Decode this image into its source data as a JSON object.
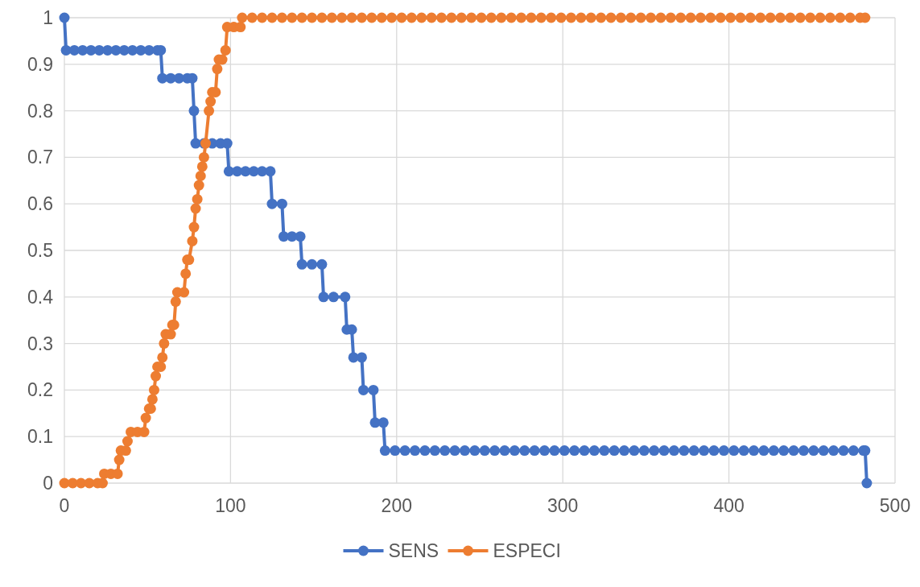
{
  "chart_data": {
    "type": "line",
    "xlim": [
      0,
      500
    ],
    "xticks": [
      0,
      100,
      200,
      300,
      400,
      500
    ],
    "ylim": [
      0,
      1
    ],
    "yticks": [
      0,
      0.1,
      0.2,
      0.3,
      0.4,
      0.5,
      0.6,
      0.7,
      0.8,
      0.9,
      1
    ],
    "grid": true,
    "legend": "bottom",
    "marker": "circle",
    "line_style": "solid",
    "series": [
      {
        "name": "SENS",
        "color": "#4472c4",
        "x": [
          0,
          1,
          6,
          11,
          16,
          21,
          26,
          31,
          36,
          41,
          46,
          51,
          56,
          58,
          59,
          64,
          69,
          74,
          77,
          78,
          79,
          84,
          89,
          94,
          98,
          99,
          104,
          109,
          114,
          119,
          124,
          125,
          131,
          132,
          137,
          142,
          143,
          149,
          155,
          156,
          162,
          169,
          170,
          173,
          174,
          179,
          180,
          186,
          187,
          192,
          193,
          199,
          205,
          211,
          217,
          223,
          229,
          235,
          241,
          247,
          253,
          259,
          265,
          271,
          277,
          283,
          289,
          295,
          301,
          307,
          313,
          319,
          325,
          331,
          337,
          343,
          349,
          355,
          361,
          367,
          373,
          379,
          385,
          391,
          397,
          403,
          409,
          415,
          421,
          427,
          433,
          439,
          445,
          451,
          457,
          463,
          469,
          475,
          481,
          482,
          483
        ],
        "values": [
          1,
          0.93,
          0.93,
          0.93,
          0.93,
          0.93,
          0.93,
          0.93,
          0.93,
          0.93,
          0.93,
          0.93,
          0.93,
          0.93,
          0.87,
          0.87,
          0.87,
          0.87,
          0.87,
          0.8,
          0.73,
          0.73,
          0.73,
          0.73,
          0.73,
          0.67,
          0.67,
          0.67,
          0.67,
          0.67,
          0.67,
          0.6,
          0.6,
          0.53,
          0.53,
          0.53,
          0.47,
          0.47,
          0.47,
          0.4,
          0.4,
          0.4,
          0.33,
          0.33,
          0.27,
          0.27,
          0.2,
          0.2,
          0.13,
          0.13,
          0.07,
          0.07,
          0.07,
          0.07,
          0.07,
          0.07,
          0.07,
          0.07,
          0.07,
          0.07,
          0.07,
          0.07,
          0.07,
          0.07,
          0.07,
          0.07,
          0.07,
          0.07,
          0.07,
          0.07,
          0.07,
          0.07,
          0.07,
          0.07,
          0.07,
          0.07,
          0.07,
          0.07,
          0.07,
          0.07,
          0.07,
          0.07,
          0.07,
          0.07,
          0.07,
          0.07,
          0.07,
          0.07,
          0.07,
          0.07,
          0.07,
          0.07,
          0.07,
          0.07,
          0.07,
          0.07,
          0.07,
          0.07,
          0.07,
          0.07,
          0
        ]
      },
      {
        "name": "ESPECI",
        "color": "#ed7d31",
        "x": [
          0,
          5,
          10,
          15,
          20,
          23,
          24,
          28,
          32,
          33,
          34,
          37,
          38,
          40,
          44,
          48,
          49,
          51,
          52,
          53,
          54,
          55,
          56,
          58,
          59,
          60,
          61,
          64,
          65,
          66,
          67,
          68,
          72,
          73,
          74,
          75,
          77,
          78,
          79,
          80,
          81,
          82,
          83,
          84,
          85,
          87,
          88,
          89,
          91,
          92,
          93,
          95,
          97,
          98,
          102,
          106,
          107,
          113,
          119,
          125,
          131,
          137,
          143,
          149,
          155,
          161,
          167,
          173,
          179,
          185,
          191,
          197,
          203,
          209,
          215,
          221,
          227,
          233,
          239,
          245,
          251,
          257,
          263,
          269,
          275,
          281,
          287,
          293,
          299,
          305,
          311,
          317,
          323,
          329,
          335,
          341,
          347,
          353,
          359,
          365,
          371,
          377,
          383,
          389,
          395,
          401,
          407,
          413,
          419,
          425,
          431,
          437,
          443,
          449,
          455,
          461,
          467,
          473,
          479,
          482
        ],
        "values": [
          0,
          0,
          0,
          0,
          0,
          0,
          0.02,
          0.02,
          0.02,
          0.05,
          0.07,
          0.07,
          0.09,
          0.11,
          0.11,
          0.11,
          0.14,
          0.16,
          0.16,
          0.18,
          0.2,
          0.23,
          0.25,
          0.25,
          0.27,
          0.3,
          0.32,
          0.32,
          0.34,
          0.34,
          0.39,
          0.41,
          0.41,
          0.45,
          0.48,
          0.48,
          0.52,
          0.55,
          0.59,
          0.61,
          0.64,
          0.66,
          0.68,
          0.7,
          0.73,
          0.8,
          0.82,
          0.84,
          0.84,
          0.89,
          0.91,
          0.91,
          0.93,
          0.98,
          0.98,
          0.98,
          1,
          1,
          1,
          1,
          1,
          1,
          1,
          1,
          1,
          1,
          1,
          1,
          1,
          1,
          1,
          1,
          1,
          1,
          1,
          1,
          1,
          1,
          1,
          1,
          1,
          1,
          1,
          1,
          1,
          1,
          1,
          1,
          1,
          1,
          1,
          1,
          1,
          1,
          1,
          1,
          1,
          1,
          1,
          1,
          1,
          1,
          1,
          1,
          1,
          1,
          1,
          1,
          1,
          1,
          1,
          1,
          1,
          1,
          1,
          1,
          1,
          1,
          1,
          1
        ]
      }
    ]
  }
}
